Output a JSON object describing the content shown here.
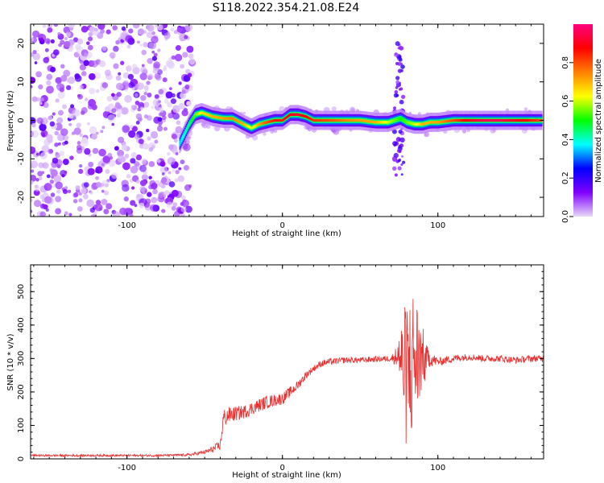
{
  "figure": {
    "title": "S118.2022.354.21.08.E24"
  },
  "chart_data": [
    {
      "type": "heatmap",
      "xlabel": "Height of straight line (km)",
      "ylabel": "Frequency (Hz)",
      "xlim": [
        -162,
        168
      ],
      "ylim": [
        -25,
        25
      ],
      "x_ticks": [
        "-100",
        "0",
        "100"
      ],
      "x_tick_values": [
        -100,
        0,
        100
      ],
      "y_ticks": [
        "-20",
        "-10",
        "0",
        "10",
        "20"
      ],
      "y_tick_values": [
        -20,
        -10,
        0,
        10,
        20
      ],
      "colorbar": {
        "label": "Normalized spectral amplitude",
        "ticks": [
          "0.0",
          "0.2",
          "0.4",
          "0.6",
          "0.8"
        ],
        "tick_values": [
          0.0,
          0.2,
          0.4,
          0.6,
          0.8
        ],
        "range": [
          0,
          1
        ],
        "colormap": [
          "#e8d8f8",
          "#8000ff",
          "#0000ff",
          "#00ffff",
          "#00ff00",
          "#ffff00",
          "#ff8000",
          "#ff0000",
          "#ff0080"
        ]
      },
      "noise_region_x": [
        -162,
        -58
      ],
      "ridge": {
        "x": [
          -66,
          -60,
          -56,
          -52,
          -45,
          -38,
          -32,
          -25,
          -20,
          -15,
          -10,
          -5,
          0,
          5,
          10,
          15,
          20,
          30,
          40,
          50,
          60,
          68,
          72,
          76,
          80,
          85,
          90,
          95,
          100,
          110,
          120,
          130,
          140,
          150,
          160,
          167
        ],
        "freq": [
          -6,
          -1,
          1.5,
          2,
          1,
          0.5,
          0.5,
          -1,
          -2,
          -1,
          -0.5,
          0,
          0,
          1.5,
          1.5,
          1,
          0,
          0,
          0,
          0,
          -0.5,
          -0.5,
          0,
          0.5,
          -0.5,
          -1,
          -1,
          -0.5,
          -0.5,
          0,
          0,
          0,
          0,
          0,
          0,
          0
        ],
        "amplitude": [
          0.35,
          0.45,
          0.55,
          0.65,
          0.7,
          0.72,
          0.75,
          0.7,
          0.6,
          0.72,
          0.8,
          0.85,
          0.85,
          0.9,
          0.92,
          0.88,
          0.82,
          0.8,
          0.75,
          0.72,
          0.7,
          0.6,
          0.55,
          0.5,
          0.55,
          0.6,
          0.7,
          0.7,
          0.72,
          0.8,
          0.9,
          0.95,
          0.95,
          0.9,
          0.85,
          0.8
        ]
      },
      "vertical_streak": {
        "x": 75,
        "freq_range": [
          -15,
          20
        ]
      }
    },
    {
      "type": "line",
      "xlabel": "Height of straight line (km)",
      "ylabel": "SNR (10 * v/v)",
      "xlim": [
        -162,
        168
      ],
      "ylim": [
        0,
        580
      ],
      "x_ticks": [
        "-100",
        "0",
        "100"
      ],
      "x_tick_values": [
        -100,
        0,
        100
      ],
      "y_ticks": [
        "0",
        "100",
        "200",
        "300",
        "400",
        "500"
      ],
      "y_tick_values": [
        0,
        100,
        200,
        300,
        400,
        500
      ],
      "color": "#e83030",
      "series": [
        {
          "x": [
            -162,
            -140,
            -120,
            -100,
            -80,
            -60,
            -50,
            -45,
            -40,
            -38,
            -35,
            -30,
            -25,
            -20,
            -15,
            -10,
            -5,
            0,
            5,
            10,
            15,
            20,
            25,
            30,
            40,
            50,
            60,
            70,
            75,
            80,
            85,
            90,
            95,
            100,
            105,
            110,
            120,
            130,
            140,
            150,
            160,
            168
          ],
          "y": [
            10,
            10,
            10,
            10,
            10,
            12,
            20,
            28,
            40,
            120,
            130,
            135,
            140,
            150,
            160,
            170,
            175,
            180,
            200,
            220,
            250,
            270,
            285,
            290,
            295,
            295,
            298,
            300,
            310,
            250,
            300,
            300,
            300,
            290,
            295,
            300,
            305,
            300,
            300,
            295,
            300,
            300
          ],
          "noise": [
            3,
            3,
            3,
            3,
            3,
            4,
            6,
            10,
            15,
            30,
            25,
            22,
            20,
            20,
            20,
            20,
            18,
            18,
            16,
            14,
            12,
            10,
            10,
            10,
            9,
            9,
            9,
            9,
            40,
            150,
            140,
            60,
            25,
            12,
            12,
            12,
            10,
            10,
            10,
            10,
            10,
            10
          ]
        }
      ]
    }
  ]
}
